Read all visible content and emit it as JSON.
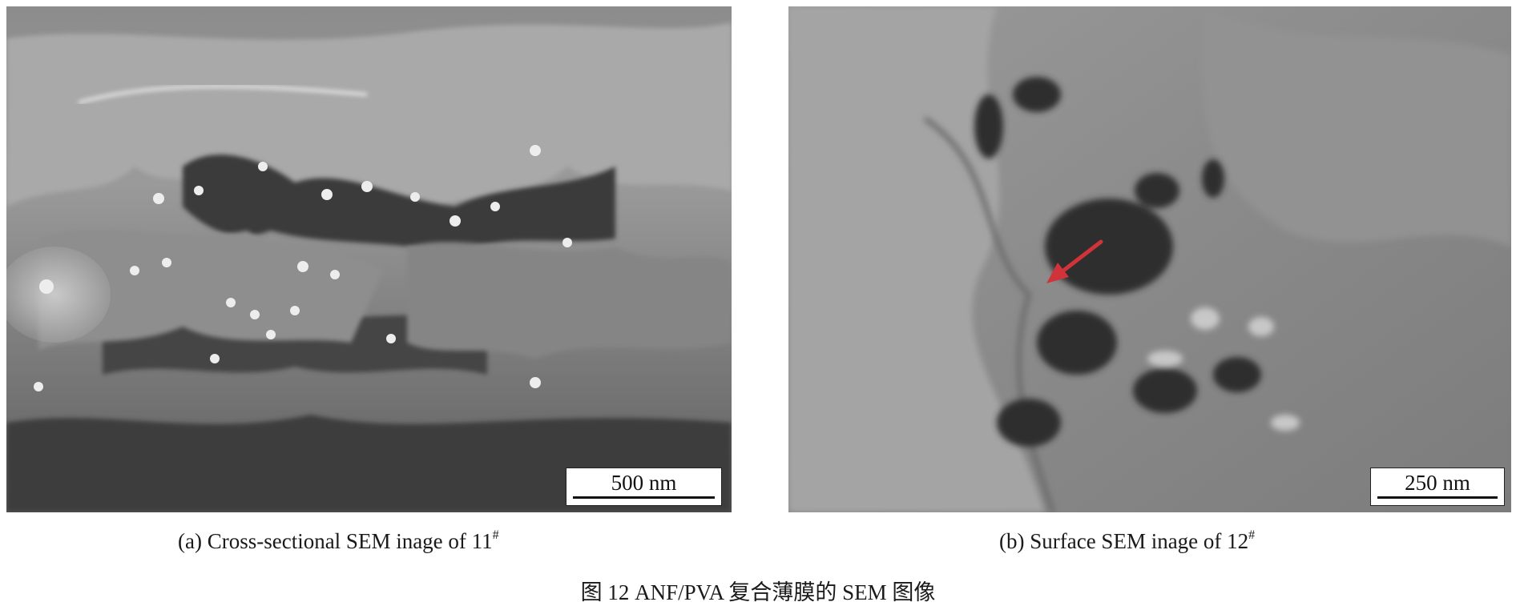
{
  "figure": {
    "title": "图 12   ANF/PVA 复合薄膜的 SEM 图像"
  },
  "panels": [
    {
      "id": "a",
      "caption_text": "(a) Cross-sectional SEM inage of 11",
      "caption_sup": "#",
      "scale_bar": "500 nm"
    },
    {
      "id": "b",
      "caption_text": "(b) Surface SEM inage of 12",
      "caption_sup": "#",
      "scale_bar": "250 nm",
      "annotation": {
        "type": "arrow",
        "color": "#d0333a"
      }
    }
  ]
}
